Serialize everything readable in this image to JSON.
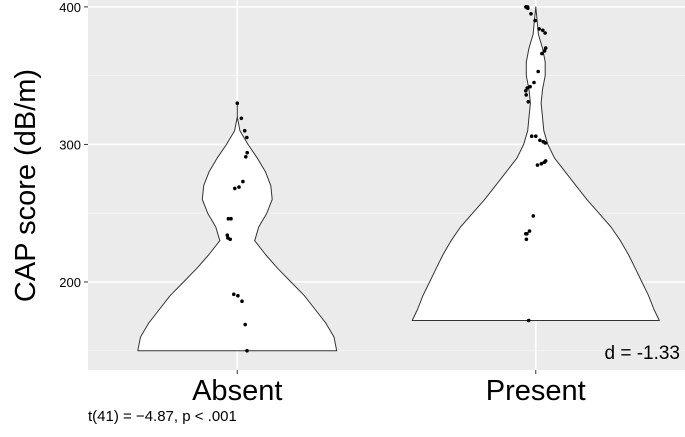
{
  "chart_data": {
    "type": "violin",
    "title": "",
    "xlabel": "",
    "ylabel": "CAP score (dB/m)",
    "ylim": [
      136,
      405
    ],
    "yticks": [
      200,
      300,
      400
    ],
    "categories": [
      "Absent",
      "Present"
    ],
    "grid": true,
    "legend": "none",
    "groups": [
      {
        "name": "Absent",
        "min": 150,
        "max": 330,
        "density": [
          [
            150,
            0.74
          ],
          [
            160,
            0.72
          ],
          [
            170,
            0.66
          ],
          [
            180,
            0.58
          ],
          [
            190,
            0.5
          ],
          [
            200,
            0.4
          ],
          [
            210,
            0.3
          ],
          [
            220,
            0.21
          ],
          [
            230,
            0.13
          ],
          [
            240,
            0.16
          ],
          [
            250,
            0.22
          ],
          [
            260,
            0.26
          ],
          [
            270,
            0.25
          ],
          [
            280,
            0.21
          ],
          [
            290,
            0.15
          ],
          [
            300,
            0.08
          ],
          [
            310,
            0.02
          ],
          [
            320,
            0.0
          ],
          [
            330,
            0.0
          ]
        ],
        "points": [
          330,
          319,
          310,
          305,
          294,
          291,
          273,
          269,
          268,
          246,
          246,
          234,
          232,
          231,
          191,
          190,
          186,
          169,
          150
        ]
      },
      {
        "name": "Present",
        "min": 172,
        "max": 400,
        "density": [
          [
            172,
            0.92
          ],
          [
            180,
            0.88
          ],
          [
            190,
            0.84
          ],
          [
            200,
            0.79
          ],
          [
            210,
            0.74
          ],
          [
            220,
            0.69
          ],
          [
            230,
            0.63
          ],
          [
            240,
            0.56
          ],
          [
            250,
            0.47
          ],
          [
            260,
            0.38
          ],
          [
            270,
            0.3
          ],
          [
            280,
            0.22
          ],
          [
            290,
            0.14
          ],
          [
            300,
            0.09
          ],
          [
            310,
            0.06
          ],
          [
            320,
            0.05
          ],
          [
            330,
            0.04
          ],
          [
            340,
            0.05
          ],
          [
            350,
            0.07
          ],
          [
            360,
            0.07
          ],
          [
            370,
            0.05
          ],
          [
            380,
            0.02
          ],
          [
            390,
            0.01
          ],
          [
            400,
            0.0
          ]
        ],
        "points": [
          400,
          400,
          400,
          399,
          395,
          390,
          384,
          383,
          381,
          370,
          368,
          366,
          353,
          345,
          342,
          341,
          339,
          336,
          331,
          306,
          306,
          303,
          302,
          301,
          288,
          287,
          286,
          285,
          248,
          237,
          235,
          235,
          231,
          172
        ]
      }
    ],
    "annotations": [
      "d = -1.33"
    ]
  },
  "caption": "t(41) = −4.87, p < .001"
}
